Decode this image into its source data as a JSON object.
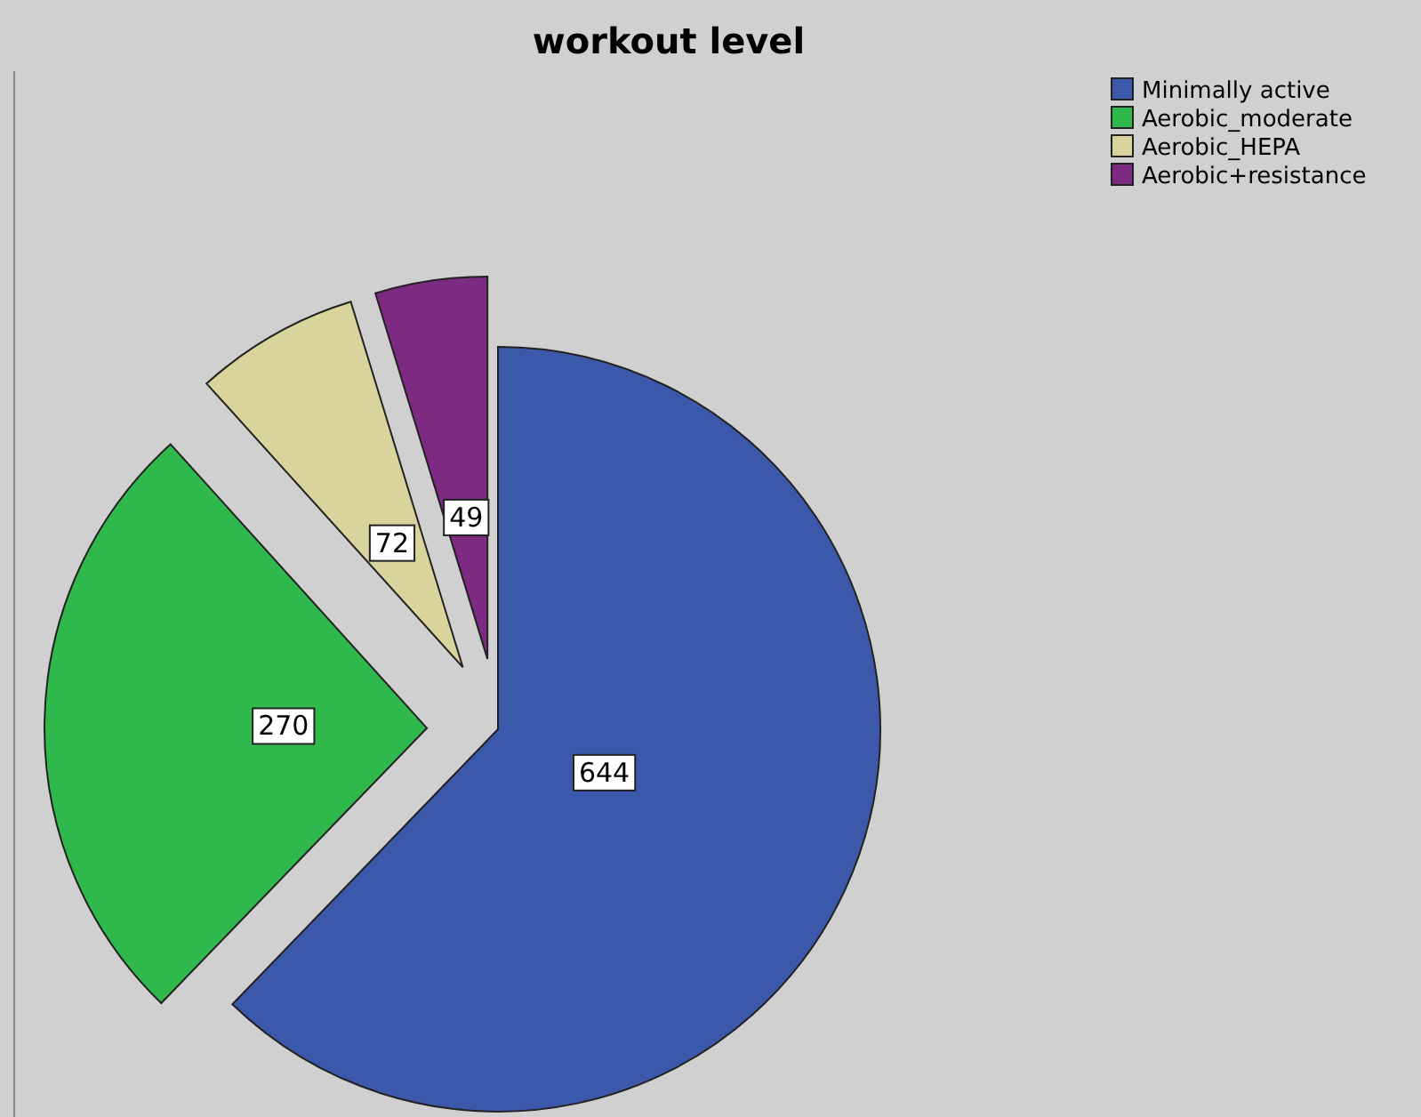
{
  "chart_data": {
    "type": "pie",
    "title": "workout level",
    "categories": [
      "Minimally active",
      "Aerobic_moderate",
      "Aerobic_HEPA",
      "Aerobic+resistance"
    ],
    "values": [
      644,
      270,
      72,
      49
    ],
    "colors": [
      "#3c58aa",
      "#2fb84b",
      "#d9d49b",
      "#7c2a82"
    ],
    "data_labels": true,
    "legend": "top right"
  }
}
